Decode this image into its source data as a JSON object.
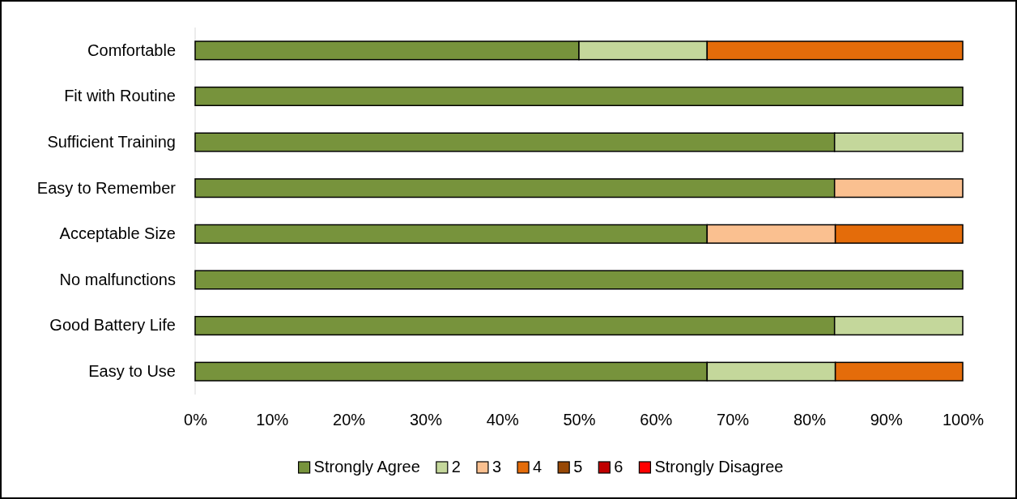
{
  "chart_data": {
    "type": "bar",
    "orientation": "horizontal",
    "stacked": true,
    "categories": [
      "Comfortable",
      "Fit with Routine",
      "Sufficient Training",
      "Easy to Remember",
      "Acceptable Size",
      "No malfunctions",
      "Good Battery Life",
      "Easy to Use"
    ],
    "series": [
      {
        "name": "Strongly Agree",
        "color": "#77933c",
        "values": [
          50,
          100,
          83.3,
          83.3,
          66.7,
          100,
          83.3,
          66.7
        ]
      },
      {
        "name": "2",
        "color": "#c4d79b",
        "values": [
          16.7,
          0,
          16.7,
          0,
          0,
          0,
          16.7,
          16.7
        ]
      },
      {
        "name": "3",
        "color": "#fac090",
        "values": [
          0,
          0,
          0,
          16.7,
          16.7,
          0,
          0,
          0
        ]
      },
      {
        "name": "4",
        "color": "#e46c0a",
        "values": [
          33.3,
          0,
          0,
          0,
          16.6,
          0,
          0,
          16.6
        ]
      },
      {
        "name": "5",
        "color": "#974806",
        "values": [
          0,
          0,
          0,
          0,
          0,
          0,
          0,
          0
        ]
      },
      {
        "name": "6",
        "color": "#c00000",
        "values": [
          0,
          0,
          0,
          0,
          0,
          0,
          0,
          0
        ]
      },
      {
        "name": "Strongly Disagree",
        "color": "#ff0000",
        "values": [
          0,
          0,
          0,
          0,
          0,
          0,
          0,
          0
        ]
      }
    ],
    "xlim": [
      0,
      100
    ],
    "xticks": [
      {
        "value": 0,
        "label": "0%"
      },
      {
        "value": 10,
        "label": "10%"
      },
      {
        "value": 20,
        "label": "20%"
      },
      {
        "value": 30,
        "label": "30%"
      },
      {
        "value": 40,
        "label": "40%"
      },
      {
        "value": 50,
        "label": "50%"
      },
      {
        "value": 60,
        "label": "60%"
      },
      {
        "value": 70,
        "label": "70%"
      },
      {
        "value": 80,
        "label": "80%"
      },
      {
        "value": 90,
        "label": "90%"
      },
      {
        "value": 100,
        "label": "100%"
      }
    ],
    "grid": false,
    "legend": "bottom"
  }
}
